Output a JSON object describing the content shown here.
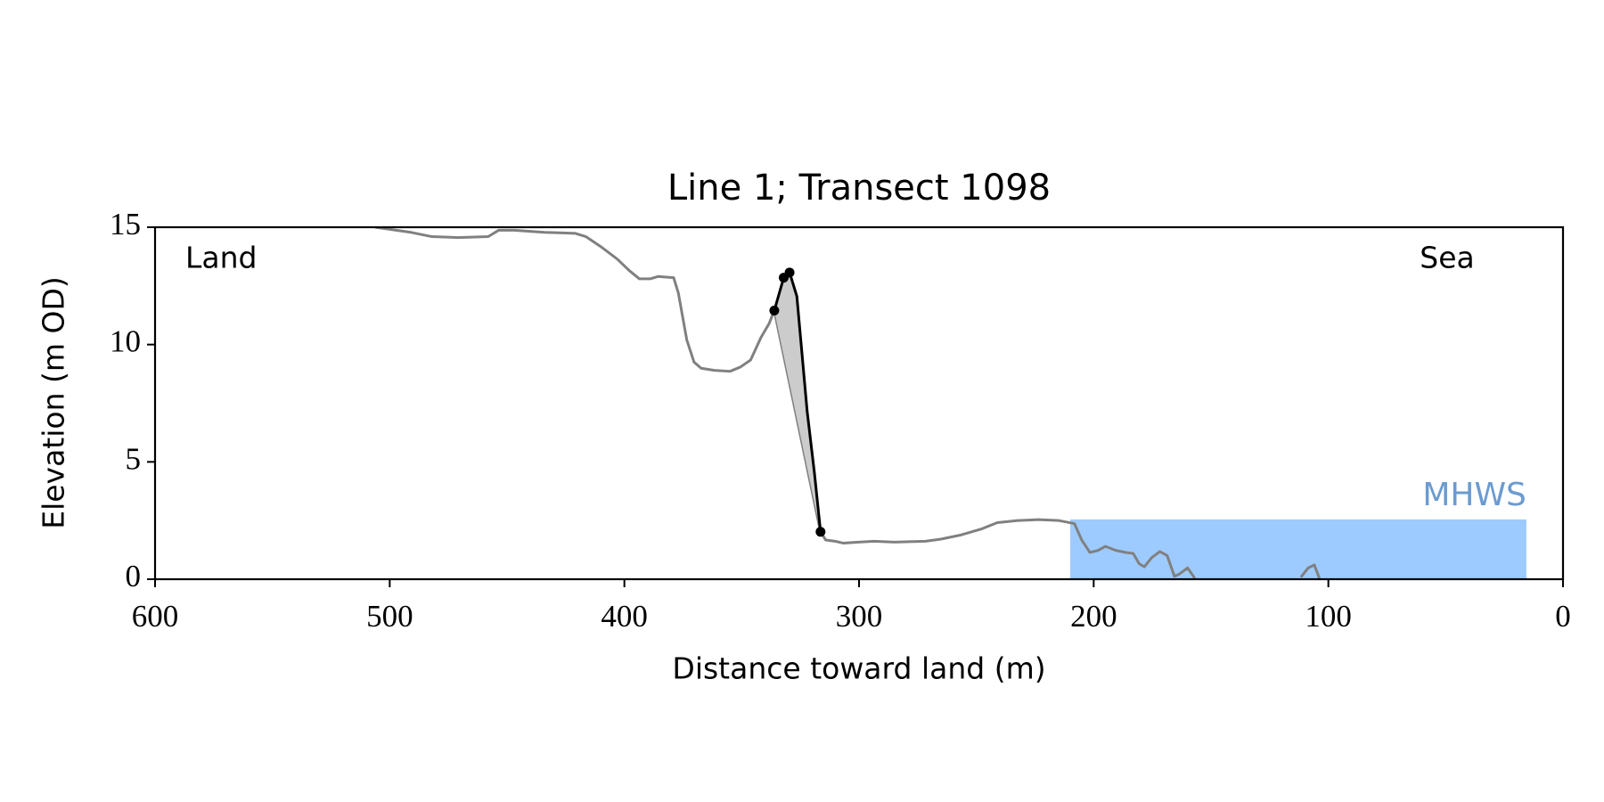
{
  "chart_data": {
    "type": "line",
    "title": "Line 1; Transect 1098",
    "xlabel": "Distance toward land (m)",
    "ylabel": "Elevation (m OD)",
    "xlim": [
      600,
      0
    ],
    "ylim": [
      0,
      15
    ],
    "xticks": [
      600,
      500,
      400,
      300,
      200,
      100,
      0
    ],
    "yticks": [
      0,
      5,
      10,
      15
    ],
    "annotations": [
      "Land",
      "Sea"
    ],
    "mhws": {
      "label": "MHWS",
      "value": 2.55,
      "x": [
        210,
        15.6
      ],
      "color": "#9ecbff",
      "label_color": "#6b9bd1"
    },
    "series": [
      {
        "color": "#808080",
        "x": [
          506.2,
          490.9,
          482,
          471,
          458,
          453.6,
          447,
          434,
          421,
          416.4,
          410,
          403,
          398,
          393.6,
          389,
          385.7,
          379,
          377,
          373.4,
          370.3,
          367.3,
          361.6,
          355,
          350.6,
          346.2,
          341.8,
          338.3,
          336.1,
          316.4,
          314.2,
          310.3,
          306.8,
          300.2,
          293.6,
          284.9,
          271.7,
          265.1,
          256.4,
          247.6,
          241.1,
          232.3,
          223.5,
          214.8,
          208.2,
          205.1,
          201.6,
          198.1,
          195.0,
          190.6,
          186.3,
          183.2,
          180.6,
          178.4,
          175.3,
          171.8,
          168.7,
          165.6,
          163.5,
          160.0,
          156.9,
          null,
          111.7,
          108.6,
          106.0,
          103.8
        ],
        "values": [
          15.0,
          14.78,
          14.6,
          14.56,
          14.6,
          14.87,
          14.87,
          14.78,
          14.74,
          14.6,
          14.17,
          13.64,
          13.16,
          12.8,
          12.8,
          12.9,
          12.85,
          12.2,
          10.2,
          9.25,
          8.99,
          8.9,
          8.86,
          9.04,
          9.34,
          10.3,
          10.9,
          11.45,
          2.02,
          1.67,
          1.62,
          1.54,
          1.58,
          1.62,
          1.58,
          1.62,
          1.71,
          1.89,
          2.15,
          2.41,
          2.5,
          2.54,
          2.5,
          2.37,
          1.67,
          1.14,
          1.23,
          1.4,
          1.23,
          1.14,
          1.1,
          0.66,
          0.53,
          0.92,
          1.18,
          1.01,
          0.13,
          0.22,
          0.48,
          0.04,
          null,
          0.09,
          0.48,
          0.61,
          0.04
        ]
      },
      {
        "color": "#000000",
        "fill_color": "#cccccc",
        "x": [
          336.1,
          332.1,
          329.6,
          326.5,
          322.1,
          319.0,
          316.4
        ],
        "values": [
          11.45,
          12.85,
          13.07,
          12.06,
          7.15,
          4.52,
          2.02
        ]
      },
      {
        "color": "#000000",
        "style": "points",
        "x": [
          336.1,
          332.1,
          329.6,
          316.4
        ],
        "values": [
          11.45,
          12.85,
          13.07,
          2.02
        ]
      }
    ]
  }
}
